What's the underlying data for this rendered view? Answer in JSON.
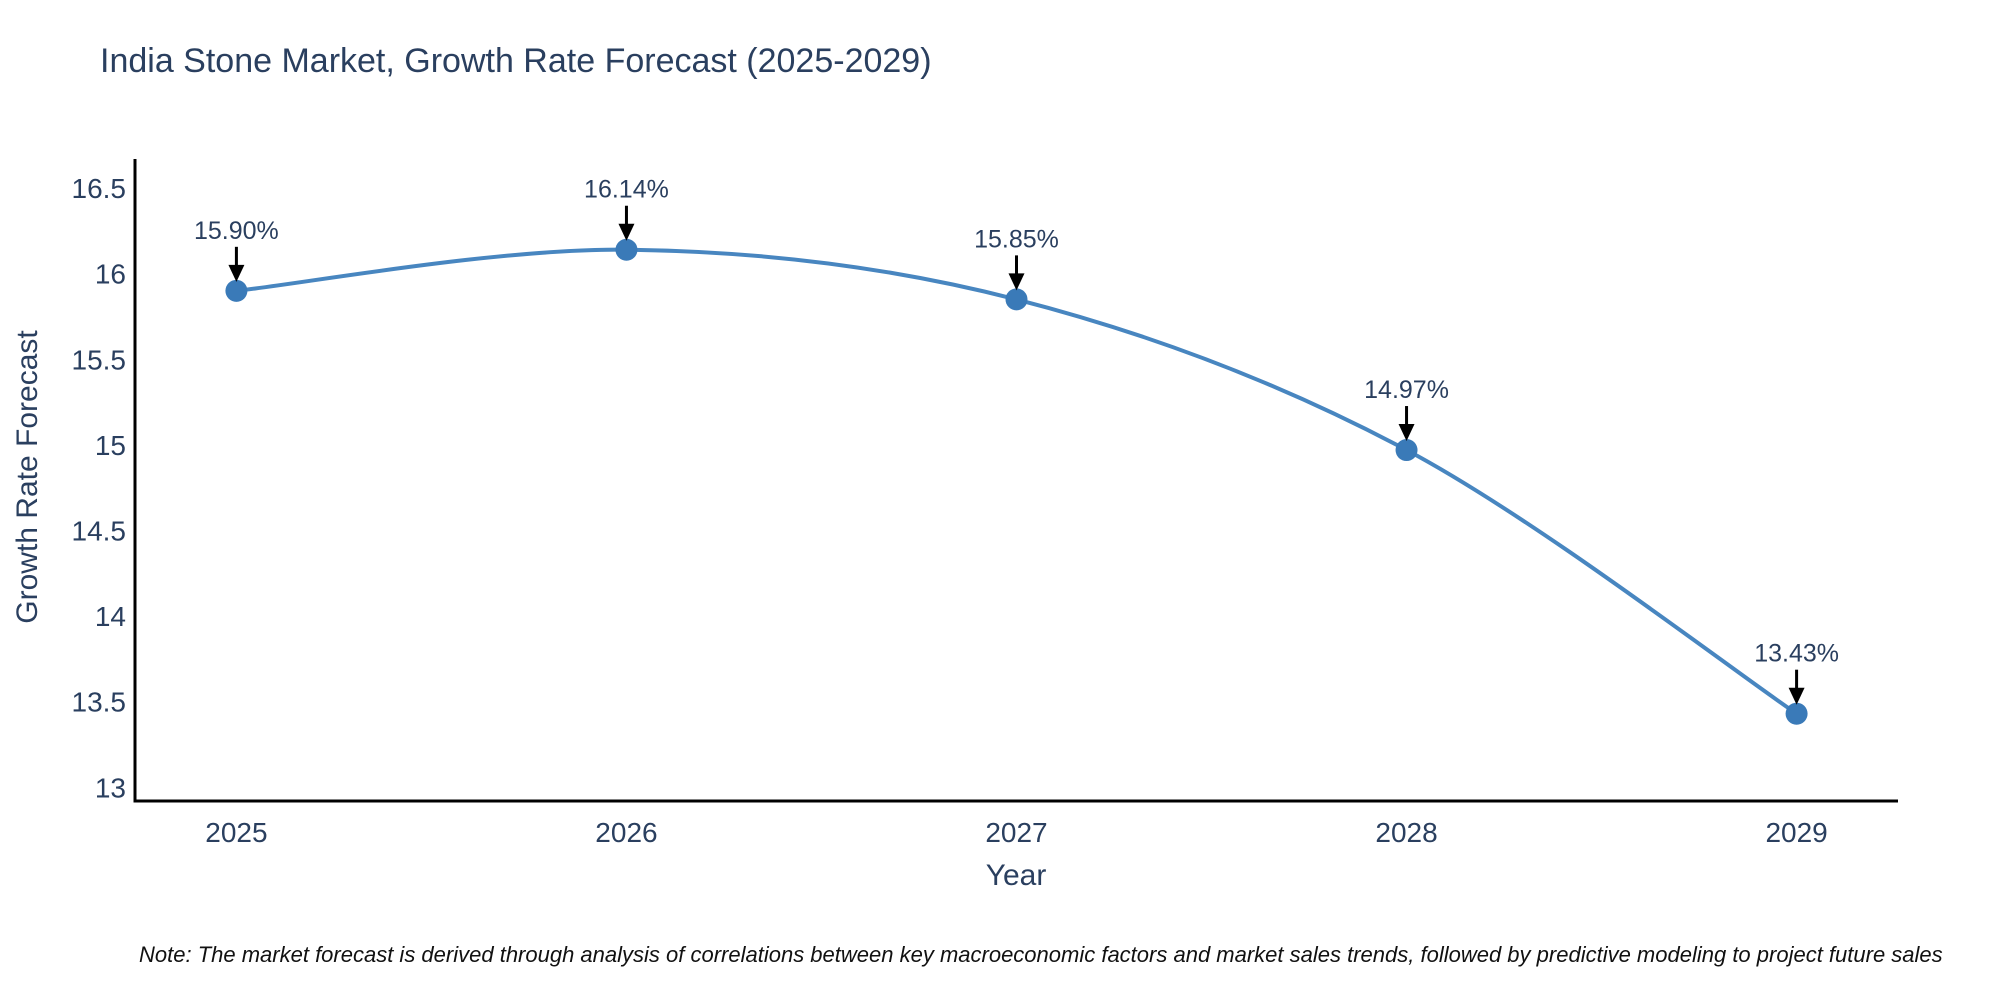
{
  "chart_data": {
    "type": "line",
    "title": "India Stone Market, Growth Rate Forecast (2025-2029)",
    "xlabel": "Year",
    "ylabel": "Growth Rate Forecast",
    "categories": [
      "2025",
      "2026",
      "2027",
      "2028",
      "2029"
    ],
    "x": [
      2025,
      2026,
      2027,
      2028,
      2029
    ],
    "series": [
      {
        "name": "Growth Rate Forecast",
        "values": [
          15.9,
          16.14,
          15.85,
          14.97,
          13.43
        ]
      }
    ],
    "point_labels": [
      "15.90%",
      "16.14%",
      "15.85%",
      "14.97%",
      "13.43%"
    ],
    "ytick_values": [
      13,
      13.5,
      14,
      14.5,
      15,
      15.5,
      16,
      16.5
    ],
    "ytick_labels": [
      "13",
      "13.5",
      "14",
      "14.5",
      "15",
      "15.5",
      "16",
      "16.5"
    ],
    "xlim": [
      2024.74,
      2029.26
    ],
    "ylim": [
      12.92,
      16.67
    ],
    "line_shape": "spline",
    "grid": false,
    "legend": "none",
    "annotation_arrow_direction": "down",
    "colors": {
      "line": "#4886c0",
      "marker": "#3a7ab8",
      "axis": "#000000",
      "text": "#2a3f5f",
      "arrow": "#000000",
      "background": "#ffffff"
    }
  },
  "note": {
    "text": "Note: The market forecast is derived through analysis of correlations between key macroeconomic factors and market sales trends, followed by predictive modeling to project future sales"
  }
}
